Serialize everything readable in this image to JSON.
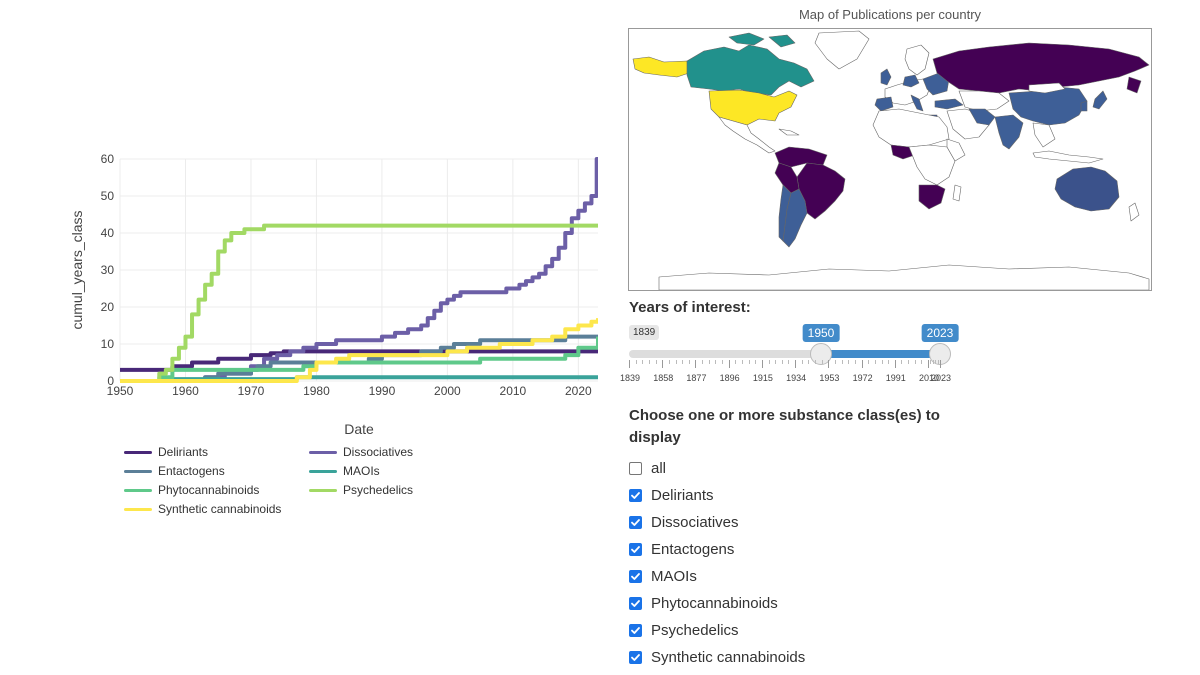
{
  "map": {
    "title": "Map of Publications per country",
    "colors": {
      "dark_purple": "#440154",
      "indigo": "#3b528b",
      "blue": "#3e5f97",
      "teal": "#21918c",
      "yellow": "#fde725",
      "land": "#ffffff",
      "border": "#666666"
    }
  },
  "slider": {
    "label": "Years of interest:",
    "min_label": "1839",
    "low_value": "1950",
    "high_value": "2023",
    "range_min": 1839,
    "range_max": 2023,
    "ticks": [
      "1839",
      "1858",
      "1877",
      "1896",
      "1915",
      "1934",
      "1953",
      "1972",
      "1991",
      "2010",
      "2023"
    ],
    "accent_color": "#428bca"
  },
  "checkboxes": {
    "label": "Choose one or more substance class(es) to display",
    "items": [
      {
        "label": "all",
        "checked": false
      },
      {
        "label": "Deliriants",
        "checked": true
      },
      {
        "label": "Dissociatives",
        "checked": true
      },
      {
        "label": "Entactogens",
        "checked": true
      },
      {
        "label": "MAOIs",
        "checked": true
      },
      {
        "label": "Phytocannabinoids",
        "checked": true
      },
      {
        "label": "Psychedelics",
        "checked": true
      },
      {
        "label": "Synthetic cannabinoids",
        "checked": true
      }
    ]
  },
  "chart_data": {
    "type": "line",
    "title": "",
    "xlabel": "Date",
    "ylabel": "cumul_years_class",
    "xlim": [
      1950,
      2023
    ],
    "ylim": [
      0,
      60
    ],
    "x_ticks": [
      "1950",
      "1960",
      "1970",
      "1980",
      "1990",
      "2000",
      "2010",
      "2020"
    ],
    "y_ticks": [
      "0",
      "10",
      "20",
      "30",
      "40",
      "50",
      "60"
    ],
    "grid": true,
    "legend_position": "bottom",
    "series": [
      {
        "name": "Deliriants",
        "color": "#482878",
        "step": true,
        "x": [
          1950,
          1956,
          1958,
          1961,
          1965,
          1970,
          1973,
          1975,
          2023
        ],
        "y": [
          3,
          3,
          4,
          5,
          6,
          7,
          7.5,
          8,
          8
        ]
      },
      {
        "name": "Dissociatives",
        "color": "#6c5fa7",
        "step": true,
        "x": [
          1950,
          1963,
          1966,
          1970,
          1972,
          1974,
          1976,
          1978,
          1980,
          1983,
          1986,
          1990,
          1992,
          1994,
          1996,
          1997,
          1998,
          1999,
          2000,
          2001,
          2002,
          2007,
          2009,
          2011,
          2012,
          2013,
          2014,
          2015,
          2016,
          2017,
          2018,
          2019,
          2020,
          2021,
          2022,
          2022.8
        ],
        "y": [
          0,
          1,
          2,
          4,
          6,
          7,
          8,
          9,
          10,
          11,
          11,
          12,
          13,
          14,
          15,
          17,
          19,
          21,
          22,
          23,
          24,
          24,
          25,
          26,
          27,
          28,
          29,
          31,
          33,
          36,
          40,
          44,
          46,
          48,
          50,
          60
        ]
      },
      {
        "name": "Entactogens",
        "color": "#5b7f98",
        "step": true,
        "x": [
          1950,
          1963,
          1965,
          1969,
          1970,
          1971,
          1973,
          1975,
          1985,
          1988,
          1990,
          1993,
          1996,
          1999,
          2001,
          2005,
          2013,
          2018,
          2023
        ],
        "y": [
          0,
          1,
          2,
          2,
          3,
          4,
          5,
          5,
          5,
          6,
          7,
          7,
          8,
          9,
          10,
          11,
          11,
          12,
          12
        ]
      },
      {
        "name": "MAOIs",
        "color": "#3aa39a",
        "step": true,
        "x": [
          1950,
          1957,
          1977,
          2023
        ],
        "y": [
          0,
          0.5,
          1,
          1
        ]
      },
      {
        "name": "Phytocannabinoids",
        "color": "#5fc98a",
        "step": true,
        "x": [
          1950,
          1956,
          1958,
          1975,
          1978,
          1980,
          1983,
          1990,
          2005,
          2013,
          2018,
          2020,
          2023
        ],
        "y": [
          0,
          1,
          3,
          3,
          4,
          5,
          5,
          5,
          6,
          6,
          7,
          9,
          12
        ]
      },
      {
        "name": "Psychedelics",
        "color": "#a2d964",
        "step": true,
        "x": [
          1950,
          1956,
          1957,
          1958,
          1959,
          1960,
          1961,
          1962,
          1963,
          1964,
          1965,
          1966,
          1967,
          1968,
          1969,
          1970,
          1972,
          2023
        ],
        "y": [
          0,
          2,
          3,
          6,
          9,
          12,
          18,
          22,
          26,
          29,
          35,
          38,
          40,
          40,
          41,
          41,
          42,
          42
        ]
      },
      {
        "name": "Synthetic cannabinoids",
        "color": "#fde74c",
        "step": true,
        "x": [
          1950,
          1976,
          1977,
          1979,
          1980,
          1983,
          1985,
          1990,
          2000,
          2003,
          2008,
          2013,
          2016,
          2018,
          2020,
          2022,
          2023
        ],
        "y": [
          0,
          0,
          1,
          3,
          5,
          6,
          7,
          7,
          8,
          9,
          10,
          11,
          12,
          14,
          15,
          16,
          17
        ]
      }
    ]
  }
}
